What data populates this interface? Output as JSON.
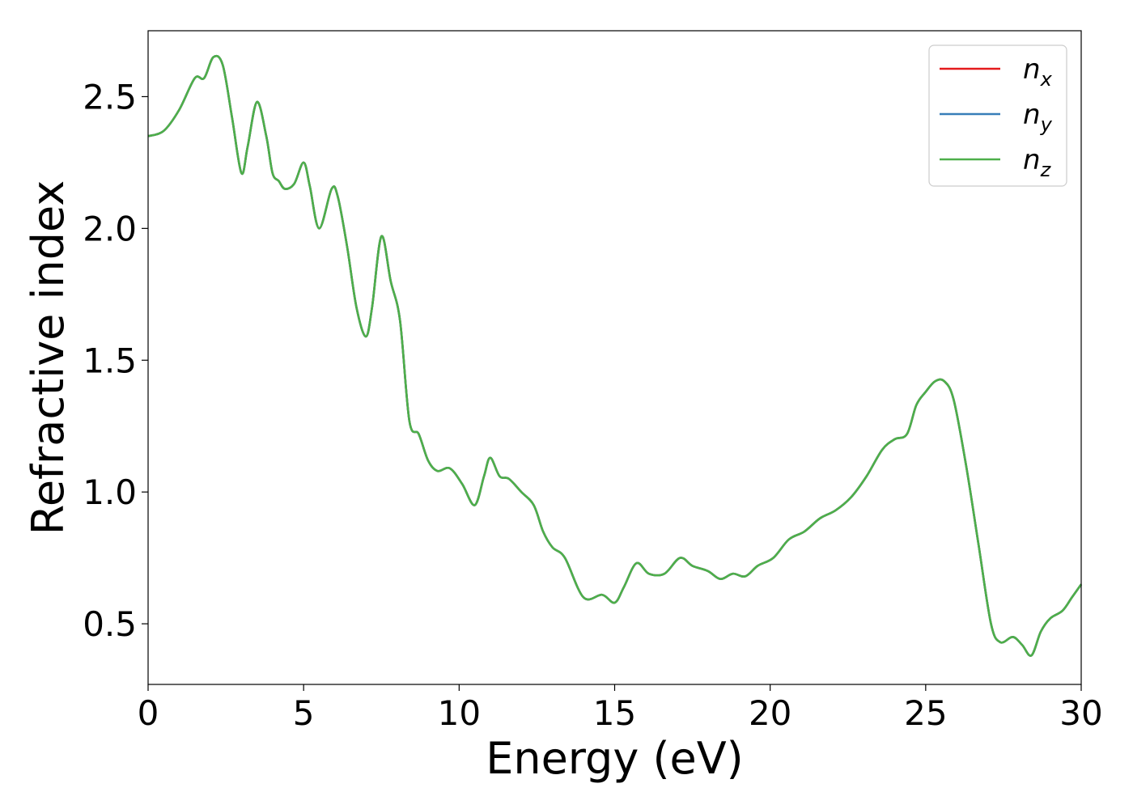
{
  "chart_data": {
    "type": "line",
    "title": "",
    "xlabel": "Energy (eV)",
    "ylabel": "Refractive index",
    "xlim": [
      0,
      30
    ],
    "ylim": [
      0.27,
      2.75
    ],
    "xticks": [
      0,
      5,
      10,
      15,
      20,
      25,
      30
    ],
    "yticks": [
      0.5,
      1.0,
      1.5,
      2.0,
      2.5
    ],
    "xtick_labels": [
      "0",
      "5",
      "10",
      "15",
      "20",
      "25",
      "30"
    ],
    "ytick_labels": [
      "0.5",
      "1.0",
      "1.5",
      "2.0",
      "2.5"
    ],
    "grid": false,
    "legend_position": "top-right",
    "series": [
      {
        "name": "n_x",
        "label_base": "n",
        "label_sub": "x",
        "color": "#e41a1c",
        "x": [
          0,
          0.5,
          1.0,
          1.5,
          1.8,
          2.1,
          2.4,
          2.7,
          3.0,
          3.2,
          3.5,
          3.8,
          4.0,
          4.2,
          4.4,
          4.7,
          5.0,
          5.2,
          5.5,
          5.9,
          6.1,
          6.4,
          6.7,
          7.0,
          7.2,
          7.5,
          7.8,
          8.1,
          8.4,
          8.7,
          9.0,
          9.3,
          9.7,
          10.1,
          10.5,
          10.8,
          11.0,
          11.3,
          11.6,
          12.0,
          12.4,
          12.7,
          13.0,
          13.4,
          14.0,
          14.6,
          15.0,
          15.3,
          15.7,
          16.1,
          16.6,
          17.1,
          17.5,
          18.0,
          18.4,
          18.8,
          19.2,
          19.6,
          20.1,
          20.6,
          21.1,
          21.6,
          22.1,
          22.6,
          23.1,
          23.6,
          24.0,
          24.4,
          24.7,
          25.0,
          25.3,
          25.6,
          25.9,
          26.3,
          26.7,
          27.1,
          27.4,
          27.8,
          28.1,
          28.4,
          28.7,
          29.0,
          29.4,
          29.7,
          30.0
        ],
        "y": [
          2.35,
          2.37,
          2.45,
          2.57,
          2.57,
          2.65,
          2.62,
          2.42,
          2.21,
          2.31,
          2.48,
          2.35,
          2.21,
          2.18,
          2.15,
          2.17,
          2.25,
          2.16,
          2.0,
          2.15,
          2.12,
          1.93,
          1.7,
          1.59,
          1.7,
          1.97,
          1.8,
          1.65,
          1.27,
          1.22,
          1.12,
          1.08,
          1.09,
          1.03,
          0.95,
          1.06,
          1.13,
          1.06,
          1.05,
          1.0,
          0.95,
          0.85,
          0.79,
          0.75,
          0.6,
          0.61,
          0.58,
          0.64,
          0.73,
          0.69,
          0.69,
          0.75,
          0.72,
          0.7,
          0.67,
          0.69,
          0.68,
          0.72,
          0.75,
          0.82,
          0.85,
          0.9,
          0.93,
          0.98,
          1.06,
          1.16,
          1.2,
          1.22,
          1.33,
          1.38,
          1.42,
          1.42,
          1.35,
          1.1,
          0.8,
          0.5,
          0.43,
          0.45,
          0.42,
          0.38,
          0.47,
          0.52,
          0.55,
          0.6,
          0.65
        ]
      },
      {
        "name": "n_y",
        "label_base": "n",
        "label_sub": "y",
        "color": "#377eb8",
        "x": [
          0,
          0.5,
          1.0,
          1.5,
          1.8,
          2.1,
          2.4,
          2.7,
          3.0,
          3.2,
          3.5,
          3.8,
          4.0,
          4.2,
          4.4,
          4.7,
          5.0,
          5.2,
          5.5,
          5.9,
          6.1,
          6.4,
          6.7,
          7.0,
          7.2,
          7.5,
          7.8,
          8.1,
          8.4,
          8.7,
          9.0,
          9.3,
          9.7,
          10.1,
          10.5,
          10.8,
          11.0,
          11.3,
          11.6,
          12.0,
          12.4,
          12.7,
          13.0,
          13.4,
          14.0,
          14.6,
          15.0,
          15.3,
          15.7,
          16.1,
          16.6,
          17.1,
          17.5,
          18.0,
          18.4,
          18.8,
          19.2,
          19.6,
          20.1,
          20.6,
          21.1,
          21.6,
          22.1,
          22.6,
          23.1,
          23.6,
          24.0,
          24.4,
          24.7,
          25.0,
          25.3,
          25.6,
          25.9,
          26.3,
          26.7,
          27.1,
          27.4,
          27.8,
          28.1,
          28.4,
          28.7,
          29.0,
          29.4,
          29.7,
          30.0
        ],
        "y": [
          2.35,
          2.37,
          2.45,
          2.57,
          2.57,
          2.65,
          2.62,
          2.42,
          2.21,
          2.31,
          2.48,
          2.35,
          2.21,
          2.18,
          2.15,
          2.17,
          2.25,
          2.16,
          2.0,
          2.15,
          2.12,
          1.93,
          1.7,
          1.59,
          1.7,
          1.97,
          1.8,
          1.65,
          1.27,
          1.22,
          1.12,
          1.08,
          1.09,
          1.03,
          0.95,
          1.06,
          1.13,
          1.06,
          1.05,
          1.0,
          0.95,
          0.85,
          0.79,
          0.75,
          0.6,
          0.61,
          0.58,
          0.64,
          0.73,
          0.69,
          0.69,
          0.75,
          0.72,
          0.7,
          0.67,
          0.69,
          0.68,
          0.72,
          0.75,
          0.82,
          0.85,
          0.9,
          0.93,
          0.98,
          1.06,
          1.16,
          1.2,
          1.22,
          1.33,
          1.38,
          1.42,
          1.42,
          1.35,
          1.1,
          0.8,
          0.5,
          0.43,
          0.45,
          0.42,
          0.38,
          0.47,
          0.52,
          0.55,
          0.6,
          0.65
        ]
      },
      {
        "name": "n_z",
        "label_base": "n",
        "label_sub": "z",
        "color": "#4daf4a",
        "x": [
          0,
          0.5,
          1.0,
          1.5,
          1.8,
          2.1,
          2.4,
          2.7,
          3.0,
          3.2,
          3.5,
          3.8,
          4.0,
          4.2,
          4.4,
          4.7,
          5.0,
          5.2,
          5.5,
          5.9,
          6.1,
          6.4,
          6.7,
          7.0,
          7.2,
          7.5,
          7.8,
          8.1,
          8.4,
          8.7,
          9.0,
          9.3,
          9.7,
          10.1,
          10.5,
          10.8,
          11.0,
          11.3,
          11.6,
          12.0,
          12.4,
          12.7,
          13.0,
          13.4,
          14.0,
          14.6,
          15.0,
          15.3,
          15.7,
          16.1,
          16.6,
          17.1,
          17.5,
          18.0,
          18.4,
          18.8,
          19.2,
          19.6,
          20.1,
          20.6,
          21.1,
          21.6,
          22.1,
          22.6,
          23.1,
          23.6,
          24.0,
          24.4,
          24.7,
          25.0,
          25.3,
          25.6,
          25.9,
          26.3,
          26.7,
          27.1,
          27.4,
          27.8,
          28.1,
          28.4,
          28.7,
          29.0,
          29.4,
          29.7,
          30.0
        ],
        "y": [
          2.35,
          2.37,
          2.45,
          2.57,
          2.57,
          2.65,
          2.62,
          2.42,
          2.21,
          2.31,
          2.48,
          2.35,
          2.21,
          2.18,
          2.15,
          2.17,
          2.25,
          2.16,
          2.0,
          2.15,
          2.12,
          1.93,
          1.7,
          1.59,
          1.7,
          1.97,
          1.8,
          1.65,
          1.27,
          1.22,
          1.12,
          1.08,
          1.09,
          1.03,
          0.95,
          1.06,
          1.13,
          1.06,
          1.05,
          1.0,
          0.95,
          0.85,
          0.79,
          0.75,
          0.6,
          0.61,
          0.58,
          0.64,
          0.73,
          0.69,
          0.69,
          0.75,
          0.72,
          0.7,
          0.67,
          0.69,
          0.68,
          0.72,
          0.75,
          0.82,
          0.85,
          0.9,
          0.93,
          0.98,
          1.06,
          1.16,
          1.2,
          1.22,
          1.33,
          1.38,
          1.42,
          1.42,
          1.35,
          1.1,
          0.8,
          0.5,
          0.43,
          0.45,
          0.42,
          0.38,
          0.47,
          0.52,
          0.55,
          0.6,
          0.65
        ]
      }
    ]
  }
}
